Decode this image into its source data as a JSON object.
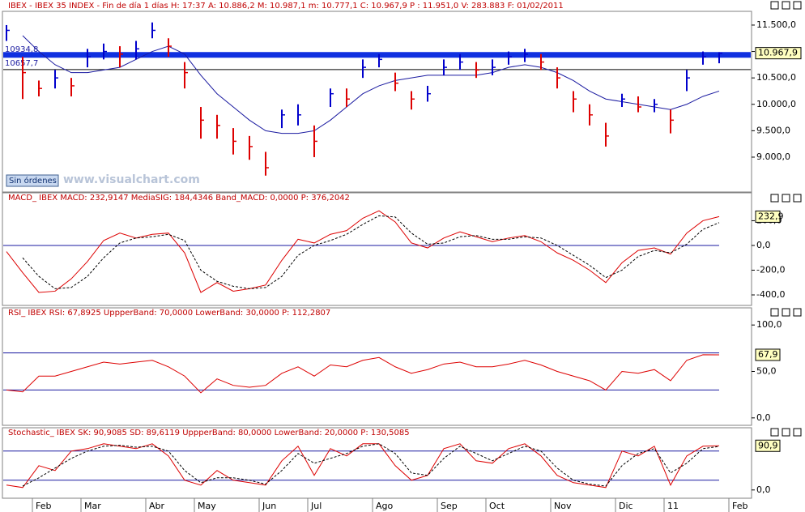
{
  "chart_data": [
    {
      "type": "candlestick",
      "title": "IBEX - IBEX 35 INDEX - Fin de día 1 días  H: 17:37  A: 10.886,2  M: 10.987,1  m: 10.777,1  C: 10.967,9  P : 11.951,0  V: 283.883  F: 01/02/2011",
      "ylim": [
        8340,
        11760
      ],
      "yticks": [
        {
          "value": 9000,
          "label": "9.000,0"
        },
        {
          "value": 9500,
          "label": "9.500,0"
        },
        {
          "value": 10000,
          "label": "10.000,0"
        },
        {
          "value": 10500,
          "label": "10.500,0"
        },
        {
          "value": 11000,
          "label": "11.000,0"
        },
        {
          "value": 11500,
          "label": "11.500,0"
        }
      ],
      "high": [
        11500,
        10900,
        10450,
        10650,
        10500,
        11050,
        11150,
        11100,
        11200,
        11550,
        11250,
        10800,
        9950,
        9800,
        9550,
        9400,
        9100,
        9900,
        10000,
        9600,
        10300,
        10300,
        10850,
        10950,
        10600,
        10250,
        10350,
        10850,
        10950,
        10800,
        10850,
        11000,
        11050,
        10950,
        10700,
        10250,
        10000,
        9650,
        10200,
        10150,
        10100,
        9900,
        10650,
        11000,
        10987.1,
        null
      ],
      "low": [
        11200,
        10100,
        10150,
        10300,
        10150,
        10700,
        10850,
        10700,
        10850,
        11250,
        10900,
        10300,
        9350,
        9350,
        9050,
        8950,
        8650,
        9550,
        9600,
        9000,
        9950,
        9950,
        10500,
        10700,
        10250,
        9900,
        10050,
        10550,
        10650,
        10500,
        10550,
        10750,
        10800,
        10650,
        10300,
        9850,
        9600,
        9200,
        9950,
        9850,
        9850,
        9450,
        10250,
        10750,
        10777.1,
        null
      ],
      "close": [
        11400,
        10600,
        10300,
        10500,
        10350,
        10900,
        11000,
        10950,
        11050,
        11400,
        11100,
        10600,
        9700,
        9600,
        9300,
        9200,
        8800,
        9800,
        9800,
        9300,
        10200,
        10100,
        10700,
        10850,
        10400,
        10100,
        10200,
        10700,
        10800,
        10650,
        10700,
        10900,
        10950,
        10800,
        10500,
        10100,
        9800,
        9400,
        10100,
        9950,
        10000,
        9700,
        10500,
        10900,
        10967.9,
        null
      ],
      "up_color": "#0000cc",
      "down_color": "#dd0000",
      "average": {
        "color": "#1a1aa0",
        "values": [
          null,
          11300,
          11000,
          10750,
          10600,
          10600,
          10650,
          10700,
          10850,
          11000,
          11100,
          10950,
          10550,
          10200,
          9950,
          9700,
          9500,
          9450,
          9450,
          9500,
          9700,
          9950,
          10200,
          10350,
          10450,
          10500,
          10550,
          10550,
          10550,
          10550,
          10600,
          10700,
          10750,
          10700,
          10600,
          10450,
          10250,
          10100,
          10050,
          10000,
          9950,
          9900,
          10000,
          10150,
          10250,
          null
        ]
      },
      "levels": [
        {
          "value": 10934.8,
          "label": "10934,8",
          "color": "#1030e0",
          "width": 7
        },
        {
          "value": 10657.7,
          "label": "10657,7",
          "color": "#000000",
          "width": 1
        }
      ],
      "last_value_label": "10.967,9",
      "button": "Sin órdenes",
      "watermark": "www.visualchart.com"
    },
    {
      "type": "line",
      "title": "MACD_ IBEX MACD: 232,9147  MediaSIG: 184,4346  Band_MACD: 0,0000  P: 376,2042",
      "ylim": [
        -485,
        347
      ],
      "yticks": [
        {
          "value": -400,
          "label": "-400,0"
        },
        {
          "value": -200,
          "label": "-200,0"
        },
        {
          "value": 0,
          "label": "0,0"
        },
        {
          "value": 200,
          "label": "200,0"
        }
      ],
      "bands": [
        0
      ],
      "series": [
        {
          "color": "#dd0000",
          "values": [
            -50,
            -220,
            -380,
            -370,
            -270,
            -130,
            40,
            100,
            60,
            90,
            100,
            -60,
            -380,
            -300,
            -370,
            -350,
            -320,
            -120,
            50,
            20,
            90,
            120,
            220,
            280,
            190,
            20,
            -20,
            60,
            110,
            70,
            30,
            60,
            80,
            30,
            -60,
            -120,
            -200,
            -300,
            -140,
            -40,
            -20,
            -70,
            100,
            200,
            232.9147,
            null
          ]
        },
        {
          "color": "#000000",
          "dash": true,
          "values": [
            null,
            -100,
            -250,
            -350,
            -340,
            -250,
            -100,
            20,
            60,
            70,
            90,
            40,
            -200,
            -290,
            -330,
            -350,
            -340,
            -250,
            -80,
            0,
            40,
            90,
            170,
            240,
            230,
            100,
            10,
            20,
            70,
            80,
            50,
            50,
            70,
            60,
            0,
            -80,
            -160,
            -260,
            -200,
            -90,
            -40,
            -60,
            10,
            130,
            184.4346,
            null
          ]
        }
      ],
      "last_value_label": "232,9"
    },
    {
      "type": "line",
      "title": "RSI_ IBEX RSI: 67,8925  UppperBand: 70,0000  LowerBand: 30,0000  P: 112,2807",
      "ylim": [
        -8,
        108
      ],
      "yticks": [
        {
          "value": 0,
          "label": "0,0"
        },
        {
          "value": 50,
          "label": "50,0"
        },
        {
          "value": 100,
          "label": "100,0"
        }
      ],
      "bands": [
        70,
        30
      ],
      "series": [
        {
          "color": "#dd0000",
          "values": [
            30,
            28,
            45,
            45,
            50,
            55,
            60,
            58,
            60,
            62,
            55,
            45,
            27,
            42,
            35,
            33,
            35,
            48,
            55,
            45,
            57,
            55,
            62,
            65,
            55,
            48,
            52,
            58,
            60,
            55,
            55,
            58,
            62,
            57,
            50,
            45,
            40,
            30,
            50,
            48,
            52,
            40,
            62,
            68,
            67.8925,
            null
          ]
        }
      ],
      "last_value_label": "67,9"
    },
    {
      "type": "line",
      "title": "Stochastic_ IBEX SK: 90,9085  SD: 89,6119  UppperBand: 80,0000  LowerBand: 20,0000  P: 130,5085",
      "ylim": [
        -17,
        108
      ],
      "yticks": [
        {
          "value": 0,
          "label": "0,0"
        }
      ],
      "bands": [
        80,
        20
      ],
      "series": [
        {
          "color": "#dd0000",
          "values": [
            10,
            5,
            50,
            40,
            80,
            85,
            95,
            90,
            85,
            95,
            70,
            20,
            10,
            40,
            20,
            15,
            10,
            60,
            90,
            30,
            85,
            70,
            95,
            95,
            50,
            20,
            30,
            85,
            95,
            60,
            55,
            85,
            95,
            70,
            30,
            15,
            10,
            5,
            80,
            70,
            90,
            10,
            70,
            90,
            90.9085,
            null
          ]
        },
        {
          "color": "#000000",
          "dash": true,
          "values": [
            null,
            8,
            25,
            45,
            65,
            80,
            90,
            92,
            88,
            90,
            80,
            40,
            15,
            25,
            25,
            20,
            12,
            40,
            75,
            55,
            65,
            75,
            90,
            95,
            75,
            35,
            30,
            65,
            90,
            75,
            60,
            75,
            90,
            80,
            45,
            20,
            12,
            8,
            50,
            75,
            85,
            35,
            55,
            85,
            89.6119,
            null
          ]
        }
      ],
      "last_value_label": "90,9",
      "categories": [
        null,
        null,
        "Feb",
        null,
        null,
        "Mar",
        null,
        null,
        null,
        "Abr",
        null,
        null,
        "May",
        null,
        null,
        null,
        "Jun",
        null,
        null,
        "Jul",
        null,
        null,
        null,
        "Ago",
        null,
        null,
        null,
        "Sep",
        null,
        null,
        "Oct",
        null,
        null,
        null,
        "Nov",
        null,
        null,
        null,
        "Dic",
        null,
        null,
        "11",
        null,
        null,
        null,
        "Feb"
      ]
    }
  ]
}
